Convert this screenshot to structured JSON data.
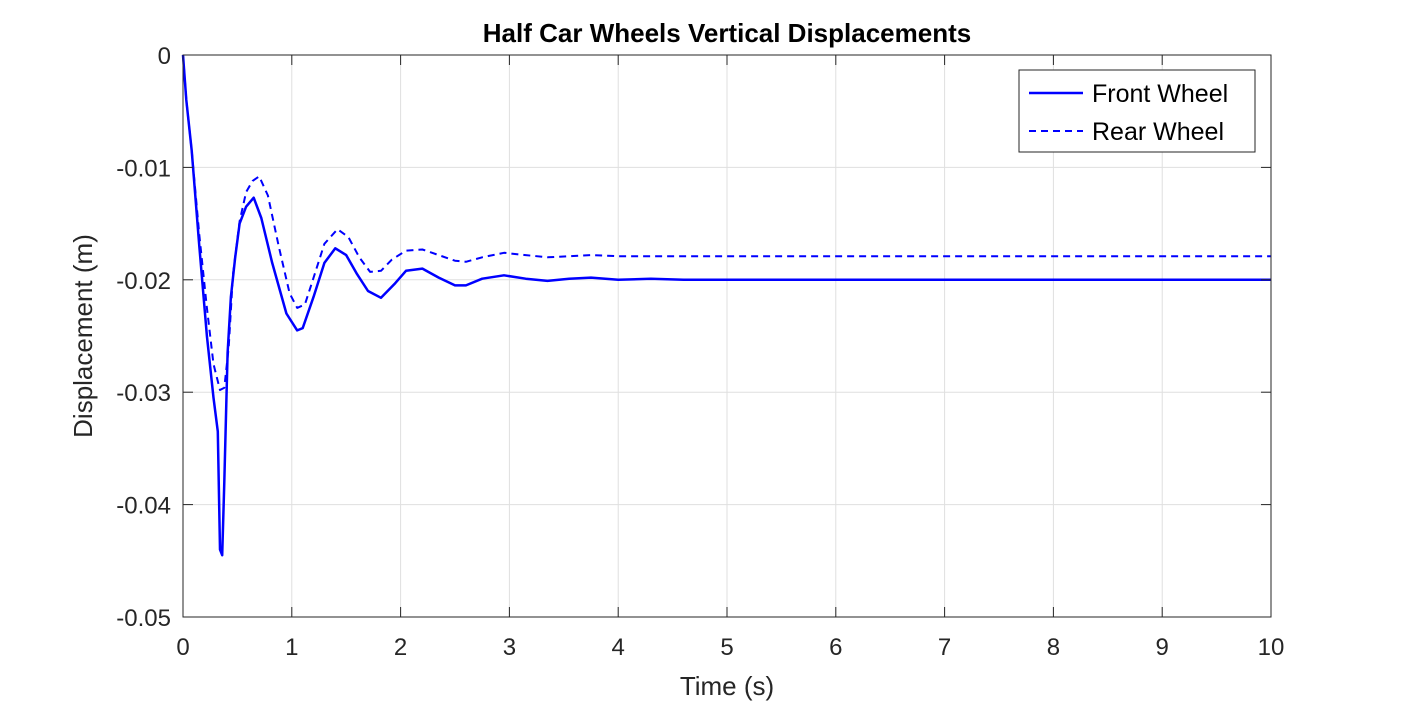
{
  "chart_data": {
    "type": "line",
    "title": "Half Car Wheels Vertical Displacements",
    "xlabel": "Time (s)",
    "ylabel": "Displacement (m)",
    "xlim": [
      0,
      10
    ],
    "ylim": [
      -0.05,
      0
    ],
    "xticks": [
      0,
      1,
      2,
      3,
      4,
      5,
      6,
      7,
      8,
      9,
      10
    ],
    "yticks": [
      0,
      -0.01,
      -0.02,
      -0.03,
      -0.04,
      -0.05
    ],
    "xtick_labels": [
      "0",
      "1",
      "2",
      "3",
      "4",
      "5",
      "6",
      "7",
      "8",
      "9",
      "10"
    ],
    "ytick_labels": [
      "0",
      "-0.01",
      "-0.02",
      "-0.03",
      "-0.04",
      "-0.05"
    ],
    "grid": true,
    "legend_position": "top-right",
    "series": [
      {
        "name": "Front Wheel",
        "style": "solid",
        "color": "#0000ff",
        "x": [
          0,
          0.03,
          0.08,
          0.15,
          0.22,
          0.28,
          0.32,
          0.34,
          0.36,
          0.38,
          0.41,
          0.44,
          0.48,
          0.52,
          0.58,
          0.65,
          0.72,
          0.82,
          0.95,
          1.05,
          1.1,
          1.2,
          1.3,
          1.4,
          1.5,
          1.6,
          1.7,
          1.82,
          1.95,
          2.05,
          2.2,
          2.35,
          2.5,
          2.6,
          2.75,
          2.95,
          3.15,
          3.35,
          3.55,
          3.75,
          4.0,
          4.3,
          4.6,
          5.0,
          5.5,
          6.0,
          7.0,
          8.0,
          9.0,
          10.0
        ],
        "y": [
          0,
          -0.004,
          -0.0085,
          -0.017,
          -0.025,
          -0.0305,
          -0.0335,
          -0.044,
          -0.0445,
          -0.038,
          -0.0265,
          -0.0215,
          -0.018,
          -0.015,
          -0.0135,
          -0.0127,
          -0.0145,
          -0.0185,
          -0.023,
          -0.0245,
          -0.0243,
          -0.0215,
          -0.0185,
          -0.0172,
          -0.0178,
          -0.0195,
          -0.021,
          -0.0216,
          -0.0203,
          -0.0192,
          -0.019,
          -0.0198,
          -0.0205,
          -0.0205,
          -0.0199,
          -0.0196,
          -0.0199,
          -0.0201,
          -0.0199,
          -0.0198,
          -0.02,
          -0.0199,
          -0.02,
          -0.02,
          -0.02,
          -0.02,
          -0.02,
          -0.02,
          -0.02,
          -0.02
        ]
      },
      {
        "name": "Rear Wheel",
        "style": "dashed",
        "color": "#0000ff",
        "x": [
          0,
          0.03,
          0.08,
          0.15,
          0.22,
          0.28,
          0.34,
          0.38,
          0.42,
          0.46,
          0.52,
          0.58,
          0.64,
          0.7,
          0.78,
          0.88,
          0.98,
          1.05,
          1.12,
          1.2,
          1.3,
          1.42,
          1.52,
          1.62,
          1.72,
          1.82,
          1.92,
          2.05,
          2.2,
          2.35,
          2.5,
          2.6,
          2.75,
          2.95,
          3.15,
          3.35,
          3.55,
          3.75,
          4.0,
          4.3,
          4.6,
          5.0,
          5.5,
          6.0,
          7.0,
          8.0,
          9.0,
          10.0
        ],
        "y": [
          0,
          -0.004,
          -0.0085,
          -0.016,
          -0.0225,
          -0.0275,
          -0.0298,
          -0.0296,
          -0.026,
          -0.0195,
          -0.0148,
          -0.0122,
          -0.0112,
          -0.0108,
          -0.0125,
          -0.017,
          -0.0212,
          -0.0225,
          -0.0222,
          -0.0198,
          -0.0168,
          -0.0155,
          -0.0162,
          -0.018,
          -0.0193,
          -0.0192,
          -0.0182,
          -0.0174,
          -0.0173,
          -0.0178,
          -0.0183,
          -0.0184,
          -0.018,
          -0.0176,
          -0.0178,
          -0.018,
          -0.0179,
          -0.0178,
          -0.0179,
          -0.0179,
          -0.0179,
          -0.0179,
          -0.0179,
          -0.0179,
          -0.0179,
          -0.0179,
          -0.0179,
          -0.0179
        ]
      }
    ]
  }
}
